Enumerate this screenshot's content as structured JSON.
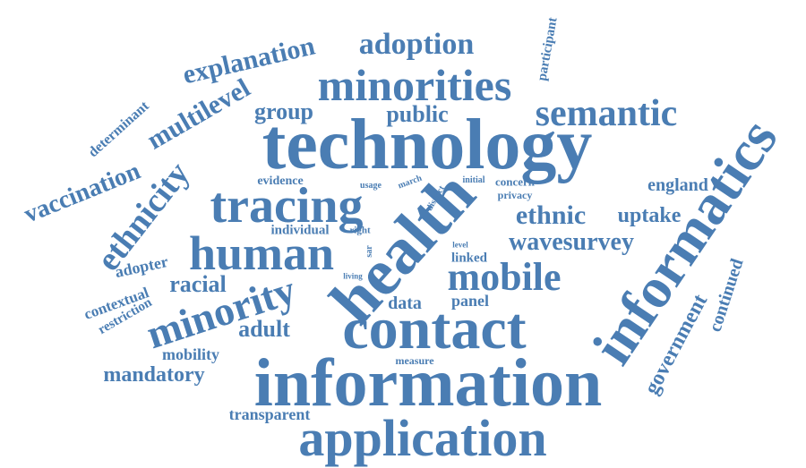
{
  "colors": {
    "word": "#4A7DB3",
    "background": "#FFFFFF"
  },
  "words": [
    "technology",
    "information",
    "application",
    "health",
    "contact",
    "informatics",
    "tracing",
    "minorities",
    "human",
    "semantic",
    "minority",
    "mobile",
    "ethnicity",
    "adoption",
    "explanation",
    "multilevel",
    "vaccination",
    "wavesurvey",
    "ethnic",
    "uptake",
    "government",
    "continued",
    "england",
    "mandatory",
    "public",
    "group",
    "racial",
    "adult",
    "data",
    "panel",
    "mobility",
    "transparent",
    "determinant",
    "participant",
    "adopter",
    "contextual",
    "restriction",
    "individual",
    "evidence",
    "linked",
    "measure",
    "concern",
    "privacy",
    "usage",
    "march",
    "district",
    "initial",
    "right",
    "sar",
    "living",
    "level"
  ]
}
